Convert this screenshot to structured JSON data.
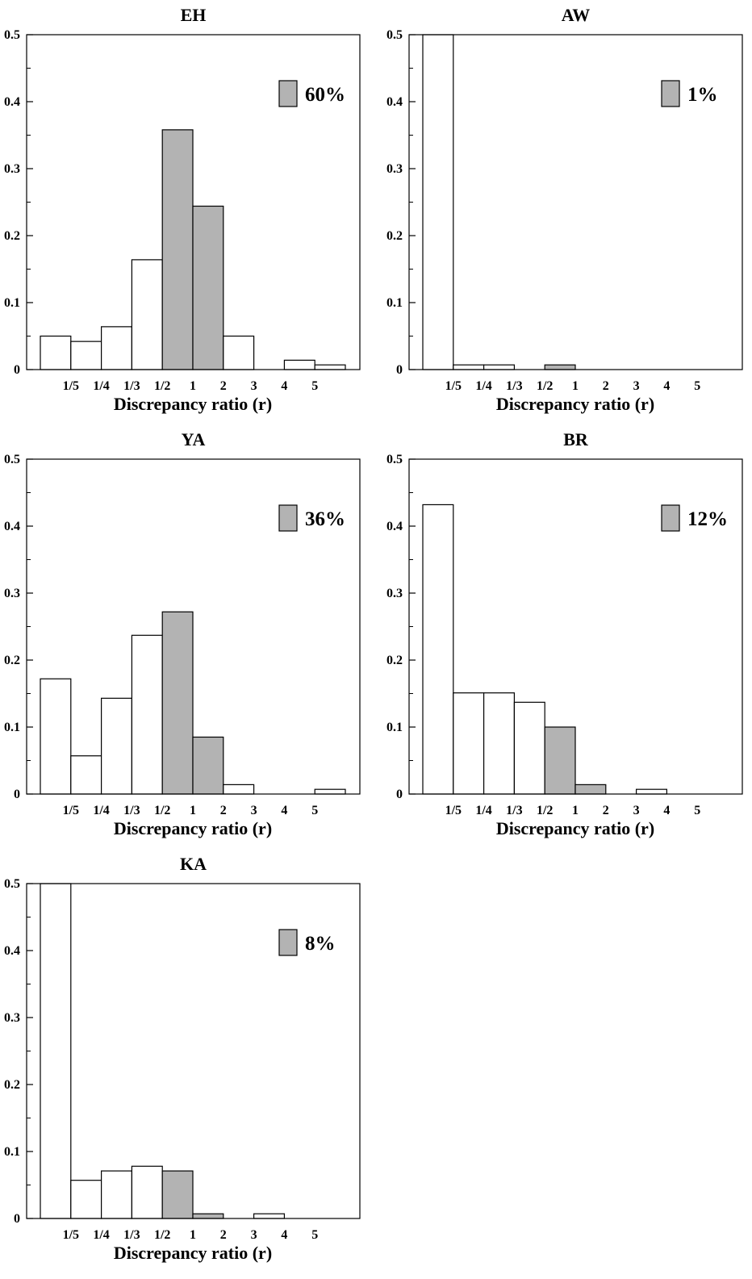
{
  "figure": {
    "xlabel": "Discrepancy ratio (r)",
    "y_ticks": [
      "0",
      "0.1",
      "0.2",
      "0.3",
      "0.4",
      "0.5"
    ],
    "colors": {
      "highlight": "#b3b3b3",
      "plain": "#ffffff",
      "stroke": "#000000"
    }
  },
  "chart_data": [
    {
      "type": "bar",
      "title": "EH",
      "legend_text": "60%",
      "xlabel": "Discrepancy ratio (r)",
      "ylim": [
        0,
        0.5
      ],
      "x_tick_labels": [
        "1/5",
        "1/4",
        "1/3",
        "1/2",
        "1",
        "2",
        "3",
        "4",
        "5"
      ],
      "values": [
        0.05,
        0.042,
        0.064,
        0.164,
        0.358,
        0.244,
        0.05,
        0.0,
        0.014,
        0.007
      ],
      "highlighted": [
        false,
        false,
        false,
        false,
        true,
        true,
        false,
        false,
        false,
        false
      ]
    },
    {
      "type": "bar",
      "title": "AW",
      "legend_text": "1%",
      "xlabel": "Discrepancy ratio (r)",
      "ylim": [
        0,
        0.5
      ],
      "x_tick_labels": [
        "1/5",
        "1/4",
        "1/3",
        "1/2",
        "1",
        "2",
        "3",
        "4",
        "5"
      ],
      "values": [
        0.5,
        0.007,
        0.007,
        0.0,
        0.007,
        0.0,
        0.0,
        0.0,
        0.0,
        0.0
      ],
      "highlighted": [
        false,
        false,
        false,
        false,
        true,
        true,
        false,
        false,
        false,
        false
      ]
    },
    {
      "type": "bar",
      "title": "YA",
      "legend_text": "36%",
      "xlabel": "Discrepancy ratio (r)",
      "ylim": [
        0,
        0.5
      ],
      "x_tick_labels": [
        "1/5",
        "1/4",
        "1/3",
        "1/2",
        "1",
        "2",
        "3",
        "4",
        "5"
      ],
      "values": [
        0.172,
        0.057,
        0.143,
        0.237,
        0.272,
        0.085,
        0.014,
        0.0,
        0.0,
        0.007
      ],
      "highlighted": [
        false,
        false,
        false,
        false,
        true,
        true,
        false,
        false,
        false,
        false
      ]
    },
    {
      "type": "bar",
      "title": "BR",
      "legend_text": "12%",
      "xlabel": "Discrepancy ratio (r)",
      "ylim": [
        0,
        0.5
      ],
      "x_tick_labels": [
        "1/5",
        "1/4",
        "1/3",
        "1/2",
        "1",
        "2",
        "3",
        "4",
        "5"
      ],
      "values": [
        0.432,
        0.151,
        0.151,
        0.137,
        0.1,
        0.014,
        0.0,
        0.007,
        0.0,
        0.0
      ],
      "highlighted": [
        false,
        false,
        false,
        false,
        true,
        true,
        false,
        false,
        false,
        false
      ]
    },
    {
      "type": "bar",
      "title": "KA",
      "legend_text": "8%",
      "xlabel": "Discrepancy ratio (r)",
      "ylim": [
        0,
        0.5
      ],
      "x_tick_labels": [
        "1/5",
        "1/4",
        "1/3",
        "1/2",
        "1",
        "2",
        "3",
        "4",
        "5"
      ],
      "values": [
        0.5,
        0.057,
        0.071,
        0.078,
        0.071,
        0.007,
        0.0,
        0.007,
        0.0,
        0.0
      ],
      "highlighted": [
        false,
        false,
        false,
        false,
        true,
        true,
        false,
        false,
        false,
        false
      ]
    }
  ]
}
